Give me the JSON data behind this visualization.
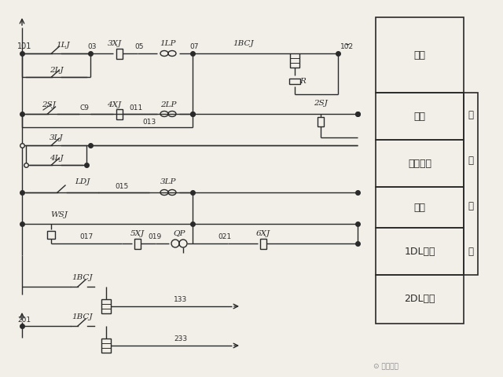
{
  "bg_color": "#f2efe9",
  "line_color": "#2a2a2a",
  "watermark": "电工之家",
  "table_labels": [
    "速断",
    "过流",
    "零序过流",
    "瓦斯",
    "1DL跳闸",
    "2DL跳闸"
  ],
  "side_label": [
    "保",
    "护",
    "回",
    "路"
  ]
}
